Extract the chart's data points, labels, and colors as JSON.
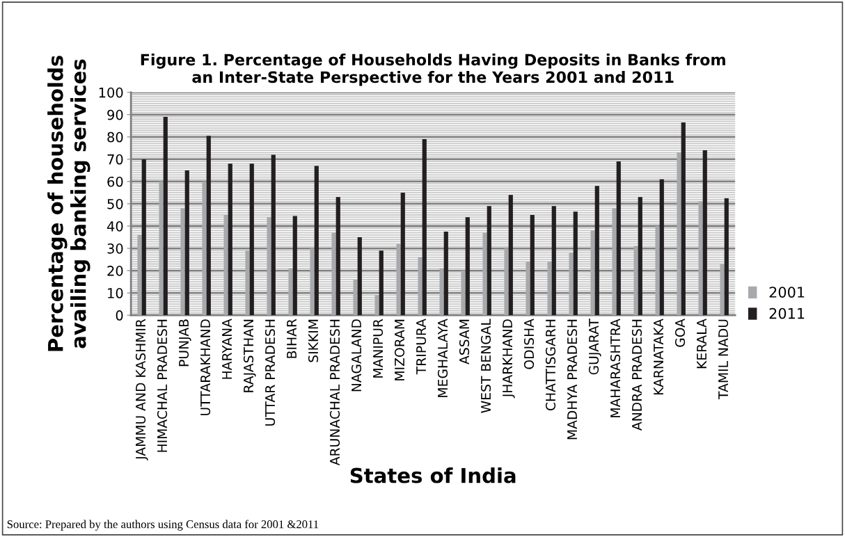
{
  "chart_data": {
    "type": "bar",
    "title": "Figure 1. Percentage of Households Having Deposits in Banks from\nan Inter-State Perspective for the Years 2001 and 2011",
    "xlabel": "States of India",
    "ylabel": "Percentage of households\navailing banking services",
    "categories": [
      "JAMMU AND KASHMIR",
      "HIMACHAL PRADESH",
      "PUNJAB",
      "UTTARAKHAND",
      "HARYANA",
      "RAJASTHAN",
      "UTTAR PRADESH",
      "BIHAR",
      "SIKKIM",
      "ARUNACHAL PRADESH",
      "NAGALAND",
      "MANIPUR",
      "MIZORAM",
      "TRIPURA",
      "MEGHALAYA",
      "ASSAM",
      "WEST BENGAL",
      "JHARKHAND",
      "ODISHA",
      "CHATTISGARH",
      "MADHYA PRADESH",
      "GUJARAT",
      "MAHARASHTRA",
      "ANDRA PRADESH",
      "KARNATAKA",
      "GOA",
      "KERALA",
      "TAMIL NADU"
    ],
    "series": [
      {
        "name": "2001",
        "color": "#a7a9ac",
        "values": [
          36,
          60,
          48,
          60,
          45,
          29,
          44,
          21,
          30,
          37,
          16,
          9,
          32,
          26,
          21,
          20,
          37,
          30,
          24,
          24,
          28,
          38,
          48,
          31,
          40,
          73,
          51,
          23
        ]
      },
      {
        "name": "2011",
        "color": "#231f20",
        "values": [
          70,
          89,
          65,
          80.5,
          68,
          68,
          72,
          44.5,
          67,
          53,
          35,
          29,
          55,
          79,
          37.5,
          44,
          49,
          54,
          45,
          49,
          46.5,
          58,
          69,
          53,
          61,
          86.5,
          74,
          52.5
        ]
      }
    ],
    "ylim": [
      0,
      100
    ],
    "yticks": [
      0,
      10,
      20,
      30,
      40,
      50,
      60,
      70,
      80,
      90,
      100
    ],
    "grid": "y",
    "legend": "right",
    "annotations": [
      "Source: Prepared by the authors using Census data for 2001 &2011"
    ]
  }
}
